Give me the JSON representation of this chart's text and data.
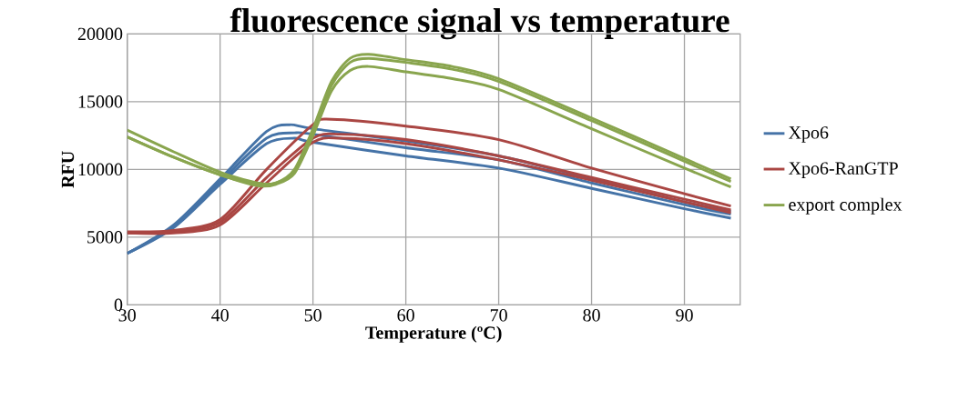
{
  "chart_data": {
    "type": "line",
    "title": "fluorescence signal vs temperature",
    "xlabel": "Temperature (ºC)",
    "ylabel": "RFU",
    "xlim": [
      30,
      96
    ],
    "xticks": [
      30,
      40,
      50,
      60,
      70,
      80,
      90
    ],
    "ylim": [
      0,
      20000
    ],
    "yticks": [
      0,
      5000,
      10000,
      15000,
      20000
    ],
    "grid": true,
    "legend": "right",
    "series": [
      {
        "name": "Xpo6",
        "color": "#4573a7",
        "x": [
          30,
          35,
          40,
          45,
          47.5,
          50,
          60,
          70,
          80,
          90,
          95
        ],
        "values": [
          3800,
          5900,
          9300,
          12800,
          13300,
          13000,
          12100,
          11000,
          9300,
          7600,
          6900
        ]
      },
      {
        "color": "#4573a7",
        "x": [
          30,
          35,
          40,
          45,
          48,
          50,
          60,
          70,
          80,
          90,
          95
        ],
        "values": [
          3800,
          5800,
          9100,
          12300,
          12700,
          12600,
          11600,
          10700,
          9000,
          7400,
          6700
        ]
      },
      {
        "color": "#4573a7",
        "x": [
          30,
          35,
          40,
          45,
          48,
          50,
          60,
          70,
          80,
          90,
          95
        ],
        "values": [
          3800,
          5700,
          8900,
          11900,
          12300,
          12000,
          11000,
          10100,
          8600,
          7100,
          6400
        ]
      },
      {
        "name": "Xpo6-RanGTP",
        "color": "#aa4643",
        "x": [
          30,
          35,
          40,
          45,
          50,
          52,
          60,
          70,
          80,
          90,
          95
        ],
        "values": [
          5400,
          5500,
          6300,
          10000,
          13300,
          13700,
          13200,
          12200,
          10100,
          8200,
          7300
        ]
      },
      {
        "color": "#aa4643",
        "x": [
          30,
          35,
          40,
          45,
          50,
          53,
          60,
          70,
          80,
          90,
          95
        ],
        "values": [
          5300,
          5400,
          6100,
          9400,
          12300,
          12600,
          12200,
          11000,
          9400,
          7800,
          7000
        ]
      },
      {
        "color": "#aa4643",
        "x": [
          30,
          35,
          40,
          45,
          50,
          53,
          60,
          70,
          80,
          90,
          95
        ],
        "values": [
          5300,
          5300,
          5900,
          9000,
          12000,
          12300,
          11900,
          10700,
          9200,
          7600,
          6800
        ]
      },
      {
        "name": "export complex",
        "color": "#89a54e",
        "x": [
          30,
          35,
          40,
          44,
          46,
          48,
          50,
          52,
          54,
          56,
          60,
          65,
          70,
          80,
          90,
          95
        ],
        "values": [
          12900,
          11300,
          9800,
          9000,
          9000,
          10000,
          13000,
          16500,
          18200,
          18500,
          18100,
          17600,
          16700,
          13800,
          10800,
          9300
        ]
      },
      {
        "color": "#89a54e",
        "x": [
          30,
          35,
          40,
          44,
          46,
          48,
          50,
          52,
          54,
          56,
          60,
          65,
          70,
          80,
          90,
          95
        ],
        "values": [
          12400,
          10900,
          9600,
          8900,
          9000,
          9800,
          12800,
          16200,
          17900,
          18200,
          17900,
          17400,
          16500,
          13600,
          10600,
          9100
        ]
      },
      {
        "color": "#89a54e",
        "x": [
          30,
          35,
          40,
          44,
          46,
          48,
          50,
          52,
          54,
          56,
          60,
          65,
          70,
          80,
          90,
          95
        ],
        "values": [
          12400,
          10900,
          9600,
          8800,
          8900,
          9700,
          12500,
          15800,
          17300,
          17600,
          17200,
          16700,
          15900,
          13000,
          10100,
          8700
        ]
      }
    ]
  }
}
